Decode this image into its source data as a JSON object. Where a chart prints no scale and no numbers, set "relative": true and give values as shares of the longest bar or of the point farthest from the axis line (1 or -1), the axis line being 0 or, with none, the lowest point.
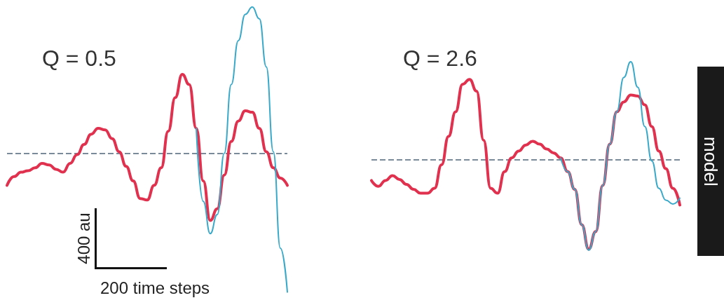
{
  "chart_data": [
    {
      "type": "line",
      "title": "Q = 0.5",
      "relative": true,
      "marker": "none",
      "line_style": "solid",
      "categories": [
        null,
        null,
        null,
        null,
        null,
        null,
        null,
        null,
        null,
        null,
        null,
        null,
        null,
        null,
        null,
        null,
        null,
        null,
        null,
        null,
        null,
        null,
        null,
        null,
        null,
        null,
        null,
        null,
        null,
        null,
        null,
        null,
        null,
        null,
        null,
        null,
        null,
        null,
        null,
        null,
        null
      ],
      "series": [
        {
          "color": "#39a9c9",
          "values": [
            null,
            null,
            null,
            null,
            null,
            null,
            null,
            null,
            null,
            null,
            null,
            null,
            null,
            null,
            null,
            null,
            null,
            null,
            null,
            null,
            null,
            null,
            null,
            null,
            null,
            null,
            null,
            0.17,
            -0.33,
            -0.55,
            -0.42,
            0.0,
            0.47,
            0.77,
            0.95,
            1.0,
            0.92,
            0.59,
            0.01,
            -0.65,
            -0.95
          ]
        },
        {
          "color": "#e0314f",
          "values": [
            -0.22,
            -0.16,
            -0.13,
            -0.12,
            -0.1,
            -0.07,
            -0.08,
            -0.11,
            -0.13,
            -0.07,
            -0.01,
            0.06,
            0.13,
            0.17,
            0.16,
            0.1,
            0.01,
            -0.09,
            -0.19,
            -0.31,
            -0.32,
            -0.22,
            -0.1,
            0.15,
            0.38,
            0.54,
            0.47,
            0.17,
            -0.19,
            -0.46,
            -0.38,
            -0.15,
            0.08,
            0.22,
            0.29,
            0.28,
            0.17,
            0.01,
            -0.1,
            -0.17,
            -0.22
          ]
        }
      ],
      "ref_lines": [
        {
          "axis": "y",
          "value": 0,
          "color": "#7a8a99",
          "line_style": "dashed"
        }
      ],
      "annotations": [
        "400 au",
        "200 time steps"
      ]
    },
    {
      "type": "line",
      "title": "Q = 2.6",
      "relative": true,
      "marker": "none",
      "line_style": "solid",
      "categories": [
        null,
        null,
        null,
        null,
        null,
        null,
        null,
        null,
        null,
        null,
        null,
        null,
        null,
        null,
        null,
        null,
        null,
        null,
        null,
        null,
        null,
        null,
        null,
        null,
        null,
        null,
        null,
        null,
        null,
        null,
        null,
        null,
        null,
        null,
        null,
        null,
        null,
        null,
        null,
        null,
        null,
        null,
        null,
        null,
        null
      ],
      "series": [
        {
          "color": "#39a9c9",
          "values": [
            null,
            null,
            null,
            null,
            null,
            null,
            null,
            null,
            null,
            null,
            null,
            null,
            null,
            null,
            null,
            null,
            null,
            null,
            null,
            null,
            null,
            null,
            null,
            null,
            null,
            null,
            null,
            0.02,
            -0.12,
            -0.3,
            -0.66,
            -0.92,
            -0.73,
            -0.26,
            0.16,
            0.49,
            0.84,
            1.0,
            0.74,
            0.34,
            -0.01,
            -0.29,
            -0.41,
            -0.45,
            -0.39
          ]
        },
        {
          "color": "#e0314f",
          "values": [
            -0.21,
            -0.27,
            -0.21,
            -0.16,
            -0.2,
            -0.25,
            -0.3,
            -0.34,
            -0.34,
            -0.29,
            -0.05,
            0.24,
            0.49,
            0.77,
            0.82,
            0.7,
            0.2,
            -0.29,
            -0.34,
            -0.12,
            0.02,
            0.09,
            0.15,
            0.19,
            0.16,
            0.11,
            0.07,
            0.02,
            -0.12,
            -0.3,
            -0.66,
            -0.91,
            -0.73,
            -0.26,
            0.16,
            0.49,
            0.59,
            0.66,
            0.65,
            0.56,
            0.34,
            0.09,
            -0.09,
            -0.29,
            -0.46
          ]
        }
      ],
      "ref_lines": [
        {
          "axis": "y",
          "value": 0,
          "color": "#7a8a99",
          "line_style": "dashed"
        }
      ],
      "annotations": [
        "model"
      ]
    }
  ]
}
